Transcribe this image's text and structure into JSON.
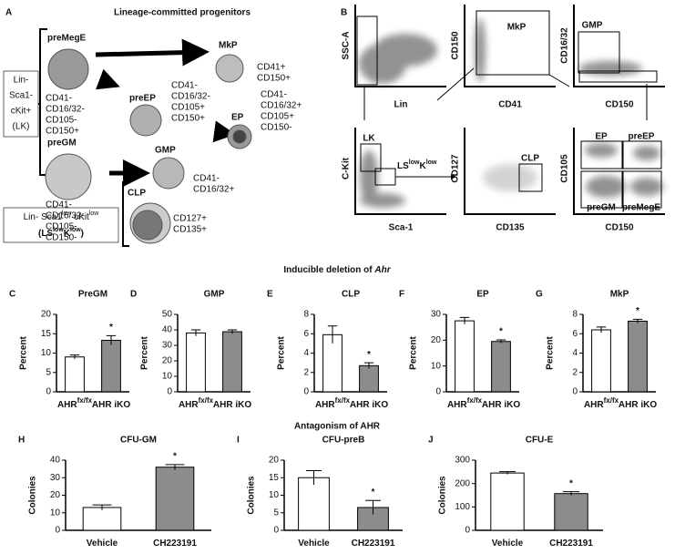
{
  "headings": {
    "deletion": "Inducible deletion of ",
    "deletion_gene": "Ahr",
    "antagonism": "Antagonism of AHR"
  },
  "panel_a": {
    "letter": "A",
    "title": "Lineage-committed progenitors",
    "lk_box": [
      "Lin-",
      "Sca1-",
      "cKit+",
      "(LK)"
    ],
    "ls_box": {
      "line1": [
        "Lin- Sca1",
        "low",
        " cKit",
        "low"
      ],
      "line2": [
        "(LS",
        "low",
        "K",
        "low",
        ")"
      ]
    },
    "cells": [
      {
        "name": "preMegE",
        "markers": [
          "CD41-",
          "CD16/32-",
          "CD105-",
          "CD150+"
        ]
      },
      {
        "name": "MkP",
        "markers": [
          "CD41+",
          "CD150+"
        ]
      },
      {
        "name": "preEP",
        "markers": [
          "CD41-",
          "CD16/32-",
          "CD105+",
          "CD150+"
        ]
      },
      {
        "name": "EP",
        "markers": [
          "CD41-",
          "CD16/32+",
          "CD105+",
          "CD150-"
        ]
      },
      {
        "name": "preGM",
        "markers": [
          "CD41-",
          "CD16/32-",
          "CD105-",
          "CD150-"
        ]
      },
      {
        "name": "GMP",
        "markers": [
          "CD41-",
          "CD16/32+"
        ]
      },
      {
        "name": "CLP",
        "markers": [
          "CD127+",
          "CD135+"
        ]
      }
    ]
  },
  "panel_b": {
    "letter": "B",
    "plots": [
      {
        "y": "SSC-A",
        "x": "Lin",
        "gates": []
      },
      {
        "y": "CD150",
        "x": "CD41",
        "gates": [
          "MkP"
        ]
      },
      {
        "y": "CD16/32",
        "x": "CD150",
        "gates": [
          "GMP"
        ]
      },
      {
        "y": "C-Kit",
        "x": "Sca-1",
        "gates": [
          "LK"
        ],
        "gate_rich": [
          "LS",
          "low",
          "K",
          "low"
        ]
      },
      {
        "y": "CD127",
        "x": "CD135",
        "gates": [
          "CLP"
        ]
      },
      {
        "y": "CD105",
        "x": "CD150",
        "gates": [
          "EP",
          "preEP",
          "preGM",
          "preMegE"
        ]
      }
    ]
  },
  "chart_data": [
    {
      "type": "bar",
      "panel": "C",
      "title": "PreGM",
      "ylabel": "Percent",
      "categories": [
        "AHR",
        "AHR iKO"
      ],
      "first_category_superscript": "fx/fx",
      "values": [
        9,
        13.3
      ],
      "errors": [
        0.5,
        1.2
      ],
      "colors": [
        "#ffffff",
        "#8c8c8c"
      ],
      "significant": [
        false,
        true
      ],
      "significance_label": "*",
      "ylim": [
        0,
        20
      ],
      "yticks": [
        0,
        5,
        10,
        15,
        20
      ]
    },
    {
      "type": "bar",
      "panel": "D",
      "title": "GMP",
      "ylabel": "Percent",
      "categories": [
        "AHR",
        "AHR iKO"
      ],
      "first_category_superscript": "fx/fx",
      "values": [
        38,
        38.8
      ],
      "errors": [
        2,
        1.2
      ],
      "colors": [
        "#ffffff",
        "#8c8c8c"
      ],
      "significant": [
        false,
        false
      ],
      "significance_label": "*",
      "ylim": [
        0,
        50
      ],
      "yticks": [
        0,
        10,
        20,
        30,
        40,
        50
      ]
    },
    {
      "type": "bar",
      "panel": "E",
      "title": "CLP",
      "ylabel": "Percent",
      "categories": [
        "AHR",
        "AHR iKO"
      ],
      "first_category_superscript": "fx/fx",
      "values": [
        5.9,
        2.7
      ],
      "errors": [
        0.9,
        0.3
      ],
      "colors": [
        "#ffffff",
        "#8c8c8c"
      ],
      "significant": [
        false,
        true
      ],
      "significance_label": "*",
      "ylim": [
        0,
        8
      ],
      "yticks": [
        0,
        2,
        4,
        6,
        8
      ]
    },
    {
      "type": "bar",
      "panel": "F",
      "title": "EP",
      "ylabel": "Percent",
      "categories": [
        "AHR",
        "AHR iKO"
      ],
      "first_category_superscript": "fx/fx",
      "values": [
        27.5,
        19.5
      ],
      "errors": [
        1.3,
        0.6
      ],
      "colors": [
        "#ffffff",
        "#8c8c8c"
      ],
      "significant": [
        false,
        true
      ],
      "significance_label": "*",
      "ylim": [
        0,
        30
      ],
      "yticks": [
        0,
        10,
        20,
        30
      ]
    },
    {
      "type": "bar",
      "panel": "G",
      "title": "MkP",
      "ylabel": "Percent",
      "categories": [
        "AHR",
        "AHR iKO"
      ],
      "first_category_superscript": "fx/fx",
      "values": [
        6.4,
        7.3
      ],
      "errors": [
        0.3,
        0.2
      ],
      "colors": [
        "#ffffff",
        "#8c8c8c"
      ],
      "significant": [
        false,
        true
      ],
      "significance_label": "*",
      "ylim": [
        0,
        8
      ],
      "yticks": [
        0,
        2,
        4,
        6,
        8
      ]
    },
    {
      "type": "bar",
      "panel": "H",
      "title": "CFU-GM",
      "ylabel": "Colonies",
      "categories": [
        "Vehicle",
        "CH223191"
      ],
      "values": [
        13,
        36
      ],
      "errors": [
        1.5,
        1.5
      ],
      "colors": [
        "#ffffff",
        "#8c8c8c"
      ],
      "significant": [
        false,
        true
      ],
      "significance_label": "*",
      "ylim": [
        0,
        40
      ],
      "yticks": [
        0,
        10,
        20,
        30,
        40
      ]
    },
    {
      "type": "bar",
      "panel": "I",
      "title": "CFU-preB",
      "ylabel": "Colonies",
      "categories": [
        "Vehicle",
        "CH223191"
      ],
      "values": [
        15,
        6.5
      ],
      "errors": [
        2,
        2
      ],
      "colors": [
        "#ffffff",
        "#8c8c8c"
      ],
      "significant": [
        false,
        true
      ],
      "significance_label": "*",
      "ylim": [
        0,
        20
      ],
      "yticks": [
        0,
        5,
        10,
        15,
        20
      ]
    },
    {
      "type": "bar",
      "panel": "J",
      "title": "CFU-E",
      "ylabel": "Colonies",
      "categories": [
        "Vehicle",
        "CH223191"
      ],
      "values": [
        245,
        157
      ],
      "errors": [
        6,
        8
      ],
      "colors": [
        "#ffffff",
        "#8c8c8c"
      ],
      "significant": [
        false,
        true
      ],
      "significance_label": "*",
      "ylim": [
        0,
        300
      ],
      "yticks": [
        0,
        100,
        200,
        300
      ]
    }
  ]
}
